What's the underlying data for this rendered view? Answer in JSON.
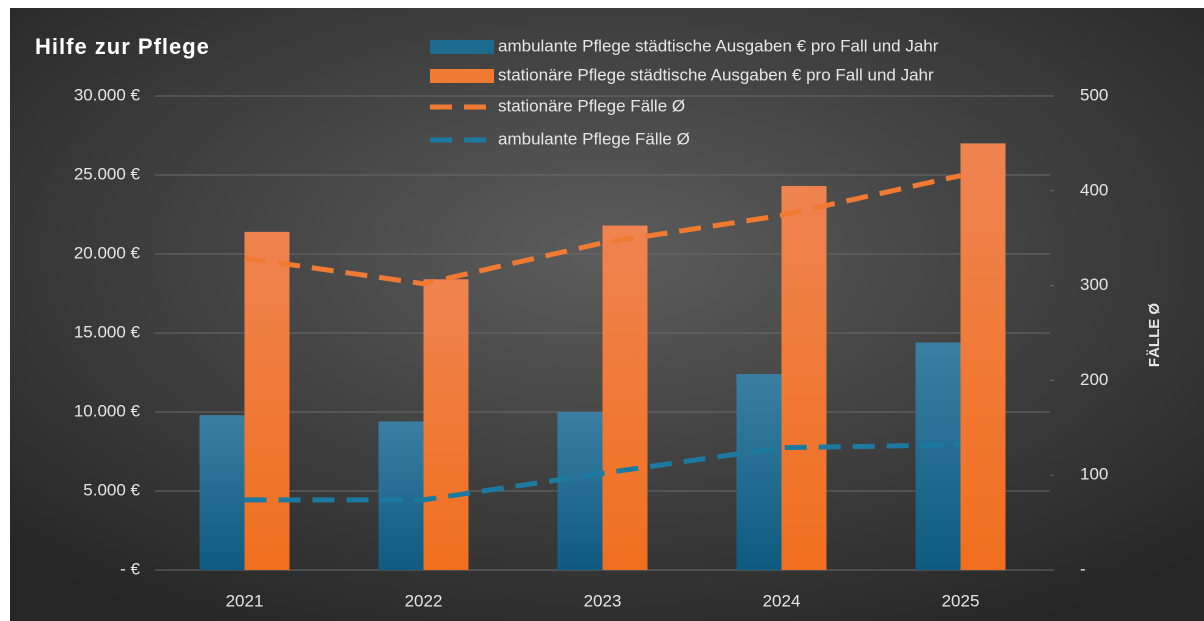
{
  "chart_data": {
    "type": "bar",
    "title": "Hilfe zur Pflege",
    "categories": [
      "2021",
      "2022",
      "2023",
      "2024",
      "2025"
    ],
    "series": [
      {
        "name": "ambulante Pflege städtische Ausgaben € pro Fall und Jahr",
        "type": "bar",
        "color": "#1c6a8e",
        "values": [
          9800,
          9400,
          10000,
          12400,
          14400
        ]
      },
      {
        "name": "stationäre Pflege städtische Ausgaben € pro Fall und Jahr",
        "type": "bar",
        "color": "#f07a32",
        "values": [
          21400,
          18400,
          21800,
          24300,
          27000
        ]
      },
      {
        "name": "stationäre Pflege Fälle Ø",
        "type": "line",
        "axis": "y2",
        "color": "#f07a32",
        "values": [
          329,
          302,
          345,
          374,
          416
        ]
      },
      {
        "name": "ambulante Pflege Fälle Ø",
        "type": "line",
        "axis": "y2",
        "color": "#1c7aa0",
        "values": [
          74,
          74,
          102,
          129,
          132
        ]
      }
    ],
    "ylim": [
      0,
      30000
    ],
    "yticks": [
      {
        "value": 0,
        "label": "-   €"
      },
      {
        "value": 5000,
        "label": "5.000 €"
      },
      {
        "value": 10000,
        "label": "10.000 €"
      },
      {
        "value": 15000,
        "label": "15.000 €"
      },
      {
        "value": 20000,
        "label": "20.000 €"
      },
      {
        "value": 25000,
        "label": "25.000 €"
      },
      {
        "value": 30000,
        "label": "30.000 €"
      }
    ],
    "y2lim": [
      0,
      500
    ],
    "y2ticks": [
      {
        "value": 0,
        "label": "-"
      },
      100,
      200,
      300,
      400,
      500
    ],
    "y2label": "FÄLLE Ø",
    "grid": true
  }
}
